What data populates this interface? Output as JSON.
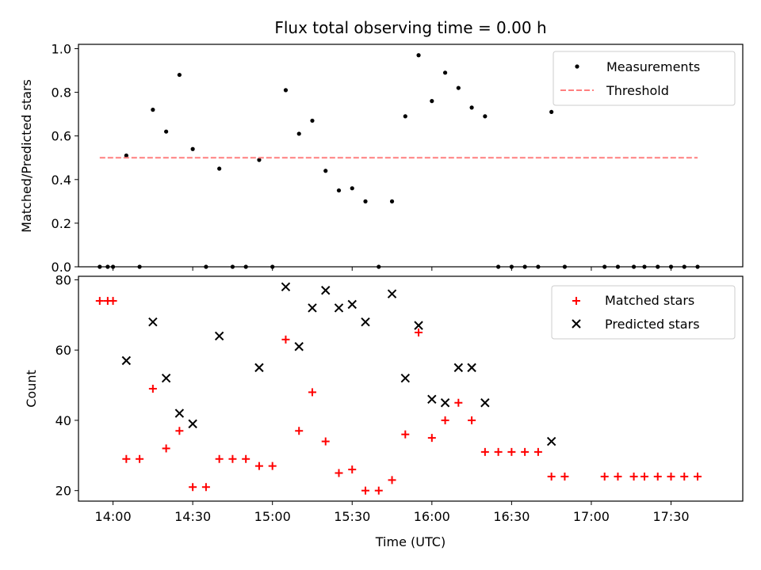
{
  "colors": {
    "measurement": "#000000",
    "threshold": "#ff7f7f",
    "matched": "#ff0000",
    "predicted": "#000000"
  },
  "chart_data": [
    {
      "type": "scatter",
      "title": "Flux total observing time = 0.00 h",
      "xlabel": "",
      "ylabel": "Matched/Predicted stars",
      "xlim": [
        "13:47",
        "17:57"
      ],
      "ylim": [
        0,
        1.02
      ],
      "yticks": [
        "0.0",
        "0.2",
        "0.4",
        "0.6",
        "0.8",
        "1.0"
      ],
      "yticks_values": [
        0,
        0.2,
        0.4,
        0.6,
        0.8,
        1.0
      ],
      "legend": {
        "position": "top-right",
        "entries": [
          "Measurements",
          "Threshold"
        ]
      },
      "series": [
        {
          "name": "Measurements",
          "marker": "dot",
          "x": [
            "13:55",
            "13:58",
            "14:00",
            "14:05",
            "14:10",
            "14:15",
            "14:20",
            "14:25",
            "14:30",
            "14:35",
            "14:40",
            "14:45",
            "14:50",
            "14:55",
            "15:00",
            "15:05",
            "15:10",
            "15:15",
            "15:20",
            "15:25",
            "15:30",
            "15:35",
            "15:40",
            "15:45",
            "15:50",
            "15:55",
            "16:00",
            "16:05",
            "16:10",
            "16:15",
            "16:20",
            "16:25",
            "16:30",
            "16:35",
            "16:40",
            "16:45",
            "16:50",
            "17:05",
            "17:10",
            "17:16",
            "17:20",
            "17:25",
            "17:30",
            "17:35",
            "17:40"
          ],
          "y": [
            0,
            0,
            0,
            0.51,
            0,
            0.72,
            0.62,
            0.88,
            0.54,
            0,
            0.45,
            0,
            0,
            0.49,
            0,
            0.81,
            0.61,
            0.67,
            0.44,
            0.35,
            0.36,
            0.3,
            0,
            0.3,
            0.69,
            0.97,
            0.76,
            0.89,
            0.82,
            0.73,
            0.69,
            0,
            0,
            0,
            0,
            0.71,
            0,
            0,
            0,
            0,
            0,
            0,
            0,
            0,
            0
          ]
        },
        {
          "name": "Threshold",
          "marker": "dashed-line",
          "x": [
            "13:55",
            "17:40"
          ],
          "y": [
            0.5,
            0.5
          ]
        }
      ]
    },
    {
      "type": "scatter",
      "title": "",
      "xlabel": "Time (UTC)",
      "ylabel": "Count",
      "xlim": [
        "13:47",
        "17:57"
      ],
      "ylim": [
        17,
        81
      ],
      "xticks": [
        "14:00",
        "14:30",
        "15:00",
        "15:30",
        "16:00",
        "16:30",
        "17:00",
        "17:30"
      ],
      "yticks": [
        "20",
        "40",
        "60",
        "80"
      ],
      "yticks_values": [
        20,
        40,
        60,
        80
      ],
      "legend": {
        "position": "top-right",
        "entries": [
          "Matched stars",
          "Predicted stars"
        ]
      },
      "series": [
        {
          "name": "Matched stars",
          "marker": "plus",
          "x": [
            "13:55",
            "13:58",
            "14:00",
            "14:05",
            "14:10",
            "14:15",
            "14:20",
            "14:25",
            "14:30",
            "14:35",
            "14:40",
            "14:45",
            "14:50",
            "14:55",
            "15:00",
            "15:05",
            "15:10",
            "15:15",
            "15:20",
            "15:25",
            "15:30",
            "15:35",
            "15:40",
            "15:45",
            "15:50",
            "15:55",
            "16:00",
            "16:05",
            "16:10",
            "16:15",
            "16:20",
            "16:25",
            "16:30",
            "16:35",
            "16:40",
            "16:45",
            "16:50",
            "17:05",
            "17:10",
            "17:16",
            "17:20",
            "17:25",
            "17:30",
            "17:35",
            "17:40"
          ],
          "y": [
            74,
            74,
            74,
            29,
            29,
            49,
            32,
            37,
            21,
            21,
            29,
            29,
            29,
            27,
            27,
            63,
            37,
            48,
            34,
            25,
            26,
            20,
            20,
            23,
            36,
            65,
            35,
            40,
            45,
            40,
            31,
            31,
            31,
            31,
            31,
            24,
            24,
            24,
            24,
            24,
            24,
            24,
            24,
            24,
            24
          ]
        },
        {
          "name": "Predicted stars",
          "marker": "x",
          "x": [
            "14:05",
            "14:15",
            "14:20",
            "14:25",
            "14:30",
            "14:40",
            "14:55",
            "15:05",
            "15:10",
            "15:15",
            "15:20",
            "15:25",
            "15:30",
            "15:35",
            "15:45",
            "15:50",
            "15:55",
            "16:00",
            "16:05",
            "16:10",
            "16:15",
            "16:20",
            "16:45"
          ],
          "y": [
            57,
            68,
            52,
            42,
            39,
            64,
            55,
            78,
            61,
            72,
            77,
            72,
            73,
            68,
            76,
            52,
            67,
            46,
            45,
            55,
            55,
            45,
            34
          ]
        }
      ]
    }
  ]
}
